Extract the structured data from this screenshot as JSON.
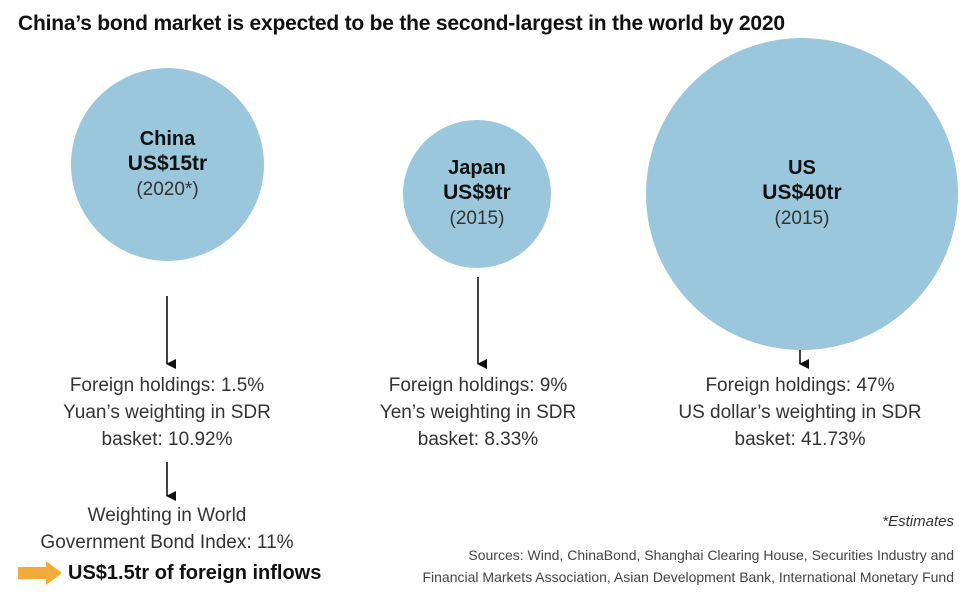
{
  "title": "China’s bond market is expected to be the second-largest in the world by 2020",
  "colors": {
    "bubble": "#9ac7dc",
    "inflow_arrow": "#f4a93b",
    "text": "#333333"
  },
  "bubbles": [
    {
      "name": "China",
      "value_label": "US$15tr",
      "value_tr": 15,
      "year": "(2020*)"
    },
    {
      "name": "Japan",
      "value_label": "US$9tr",
      "value_tr": 9,
      "year": "(2015)"
    },
    {
      "name": "US",
      "value_label": "US$40tr",
      "value_tr": 40,
      "year": "(2015)"
    }
  ],
  "info": {
    "china": [
      "Foreign holdings: 1.5%",
      "Yuan’s weighting in SDR",
      "basket: 10.92%"
    ],
    "japan": [
      "Foreign holdings: 9%",
      "Yen’s weighting in SDR",
      "basket: 8.33%"
    ],
    "us": [
      "Foreign holdings: 47%",
      "US dollar’s weighting in SDR",
      "basket: 41.73%"
    ]
  },
  "china_index": [
    "Weighting in World",
    "Government Bond Index: 11%"
  ],
  "inflow_label": "US$1.5tr of foreign inflows",
  "footnote": "*Estimates",
  "sources": [
    "Sources: Wind, ChinaBond, Shanghai Clearing House, Securities Industry and",
    "Financial Markets Association, Asian Development Bank, International Monetary Fund"
  ]
}
